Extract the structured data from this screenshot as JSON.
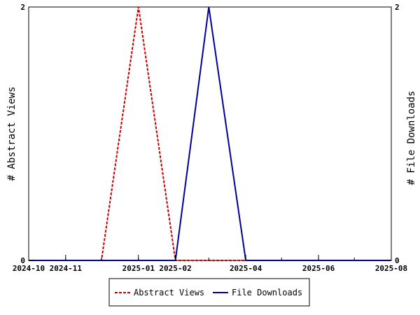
{
  "chart_data": {
    "type": "line",
    "title": "",
    "xlabel": "",
    "ylabel": "# Abstract Views",
    "y2label": "# File Downloads",
    "x_ticks": [
      "2024-10",
      "2024-11",
      "2025-01",
      "2025-02",
      "2025-04",
      "2025-06",
      "2025-08"
    ],
    "x_tick_dates": [
      "2024-10-01",
      "2024-11-01",
      "2025-01-01",
      "2025-02-01",
      "2025-04-01",
      "2025-06-01",
      "2025-08-01"
    ],
    "xlim": [
      "2024-10-01",
      "2025-08-01"
    ],
    "ylim": [
      0,
      2
    ],
    "y2lim": [
      0,
      2
    ],
    "y_ticks": [
      "0",
      "2"
    ],
    "y2_ticks": [
      "0",
      "2"
    ],
    "grid": false,
    "legend_position": "bottom",
    "series": [
      {
        "name": "Abstract Views",
        "axis": "left",
        "color": "#cc0000",
        "style": "dashed",
        "x": [
          "2024-10-01",
          "2024-12-01",
          "2025-01-01",
          "2025-02-01",
          "2025-04-01",
          "2025-08-01"
        ],
        "y": [
          0,
          0,
          2,
          0,
          0,
          0
        ]
      },
      {
        "name": "File Downloads",
        "axis": "right",
        "color": "#000099",
        "style": "solid",
        "x": [
          "2024-10-01",
          "2025-02-01",
          "2025-03-01",
          "2025-04-01",
          "2025-08-01"
        ],
        "y": [
          0,
          0,
          2,
          0,
          0
        ]
      }
    ]
  }
}
